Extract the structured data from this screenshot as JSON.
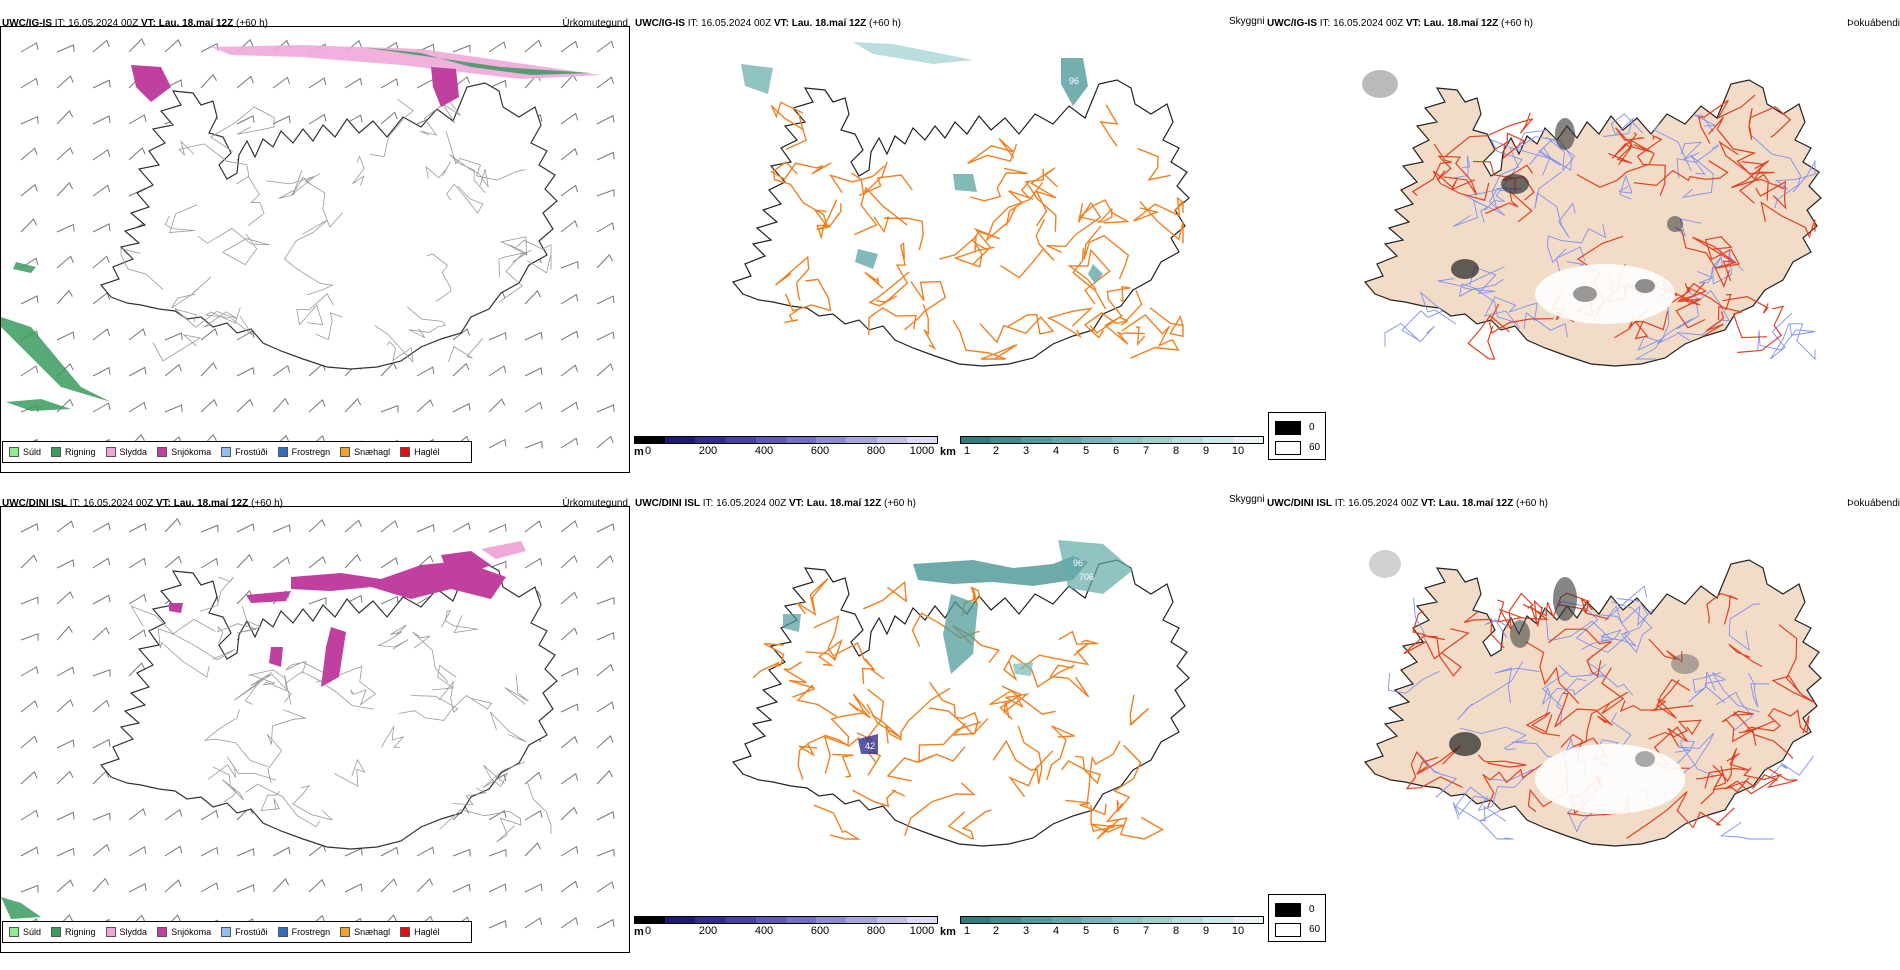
{
  "panels": {
    "r1": {
      "precip": {
        "model": "UWC/IG-IS",
        "it_label": "IT:",
        "it": "16.05.2024 00Z",
        "vt_label": "VT:",
        "vt": "Lau. 18.maí 12Z",
        "lead": "(+60 h)",
        "title": "Úrkomutegund"
      },
      "vis": {
        "model": "UWC/IG-IS",
        "it_label": "IT:",
        "it": "16.05.2024 00Z",
        "vt_label": "VT:",
        "vt": "Lau. 18.maí 12Z",
        "lead": "(+60 h)",
        "title": "Skyggni"
      },
      "cloud": {
        "model": "UWC/IG-IS",
        "it_label": "IT:",
        "it": "16.05.2024 00Z",
        "vt_label": "VT:",
        "vt": "Lau. 18.maí 12Z",
        "lead": "(+60 h)",
        "title": "Þokuábendi"
      }
    },
    "r2": {
      "precip": {
        "model": "UWC/DINI ISL",
        "it_label": "IT:",
        "it": "16.05.2024 00Z",
        "vt_label": "VT:",
        "vt": "Lau. 18.maí 12Z",
        "lead": "(+60 h)",
        "title": "Úrkomutegund"
      },
      "vis": {
        "model": "UWC/DINI ISL",
        "it_label": "IT:",
        "it": "16.05.2024 00Z",
        "vt_label": "VT:",
        "vt": "Lau. 18.maí 12Z",
        "lead": "(+60 h)",
        "title": "Skyggni"
      },
      "cloud": {
        "model": "UWC/DINI ISL",
        "it_label": "IT:",
        "it": "16.05.2024 00Z",
        "vt_label": "VT:",
        "vt": "Lau. 18.maí 12Z",
        "lead": "(+60 h)",
        "title": "Þokuábendi"
      }
    }
  },
  "precip_legend": [
    {
      "label": "Súld",
      "color": "#90ee90"
    },
    {
      "label": "Rigning",
      "color": "#3a9a60"
    },
    {
      "label": "Slydda",
      "color": "#f0a8d8"
    },
    {
      "label": "Snjókoma",
      "color": "#c040a0"
    },
    {
      "label": "Frostúði",
      "color": "#90c0f0"
    },
    {
      "label": "Frostregn",
      "color": "#3070c0"
    },
    {
      "label": "Snæhagl",
      "color": "#f0a030"
    },
    {
      "label": "Haglél",
      "color": "#e01010"
    }
  ],
  "vis_scale_m": {
    "unit": "m",
    "ticks": [
      "0",
      "200",
      "400",
      "600",
      "800",
      "1000"
    ],
    "colors": [
      "#000000",
      "#1a1a6e",
      "#2e2e90",
      "#4444a8",
      "#5a5ab8",
      "#7070c4",
      "#8c8cd0",
      "#a6a6dc",
      "#c0c0e8",
      "#dcdcf4"
    ]
  },
  "vis_scale_km": {
    "unit": "km",
    "ticks": [
      "1",
      "2",
      "3",
      "4",
      "5",
      "6",
      "7",
      "8",
      "9",
      "10"
    ],
    "colors": [
      "#2e7f7f",
      "#3f8d8d",
      "#519b9b",
      "#63a9a9",
      "#76b6b6",
      "#8ac3c3",
      "#9fcfcf",
      "#b5dcdc",
      "#cce8e8",
      "#e4f3f3"
    ]
  },
  "cloud_legend": [
    {
      "label": "0",
      "color": "#000000"
    },
    {
      "label": "60",
      "color": "#ffffff"
    }
  ],
  "map_labels": {
    "r1_vis": [
      "96"
    ],
    "r2_vis": [
      "96",
      "706",
      "42"
    ]
  },
  "colors": {
    "roads": "#f08020",
    "roads_red": "#e04020",
    "rivers": "#8090f0",
    "land": "#f2dcc8",
    "coast": "#000000"
  }
}
